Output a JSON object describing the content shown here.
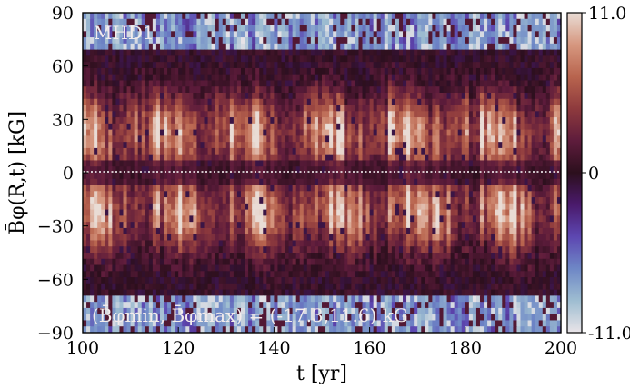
{
  "chart_data": {
    "type": "heatmap",
    "title": "",
    "annotation_run": "MHD1",
    "annotation_range_prefix": "(B",
    "annotation_range_text": "(B̄φmin, B̄φmax) = (-17.3,11.6) kG",
    "range_min": -17.3,
    "range_max": 11.6,
    "range_unit": "kG",
    "xlabel": "t [yr]",
    "ylabel": "B̄φ(R,t) [kG]",
    "xlim": [
      100,
      200
    ],
    "ylim": [
      -90,
      90
    ],
    "x_ticks": [
      "100",
      "120",
      "140",
      "160",
      "180",
      "200"
    ],
    "y_ticks": [
      "90",
      "60",
      "30",
      "0",
      "−30",
      "−60",
      "−90"
    ],
    "colorbar": {
      "min": -11.0,
      "max": 11.0,
      "tick_labels": [
        "11.0",
        "0",
        "-11.0"
      ],
      "colormap": "twilight-shifted",
      "colors": [
        "#e9e4e8",
        "#9ebdd1",
        "#6e87c6",
        "#5d47b1",
        "#4a1a6c",
        "#2c0f1d",
        "#5e1c3c",
        "#8e3a3d",
        "#b8644e",
        "#d6977f",
        "#e9dcd5"
      ]
    },
    "equator_line": {
      "y": 0,
      "style": "dotted",
      "color": "#ffffff"
    },
    "grid": false
  }
}
